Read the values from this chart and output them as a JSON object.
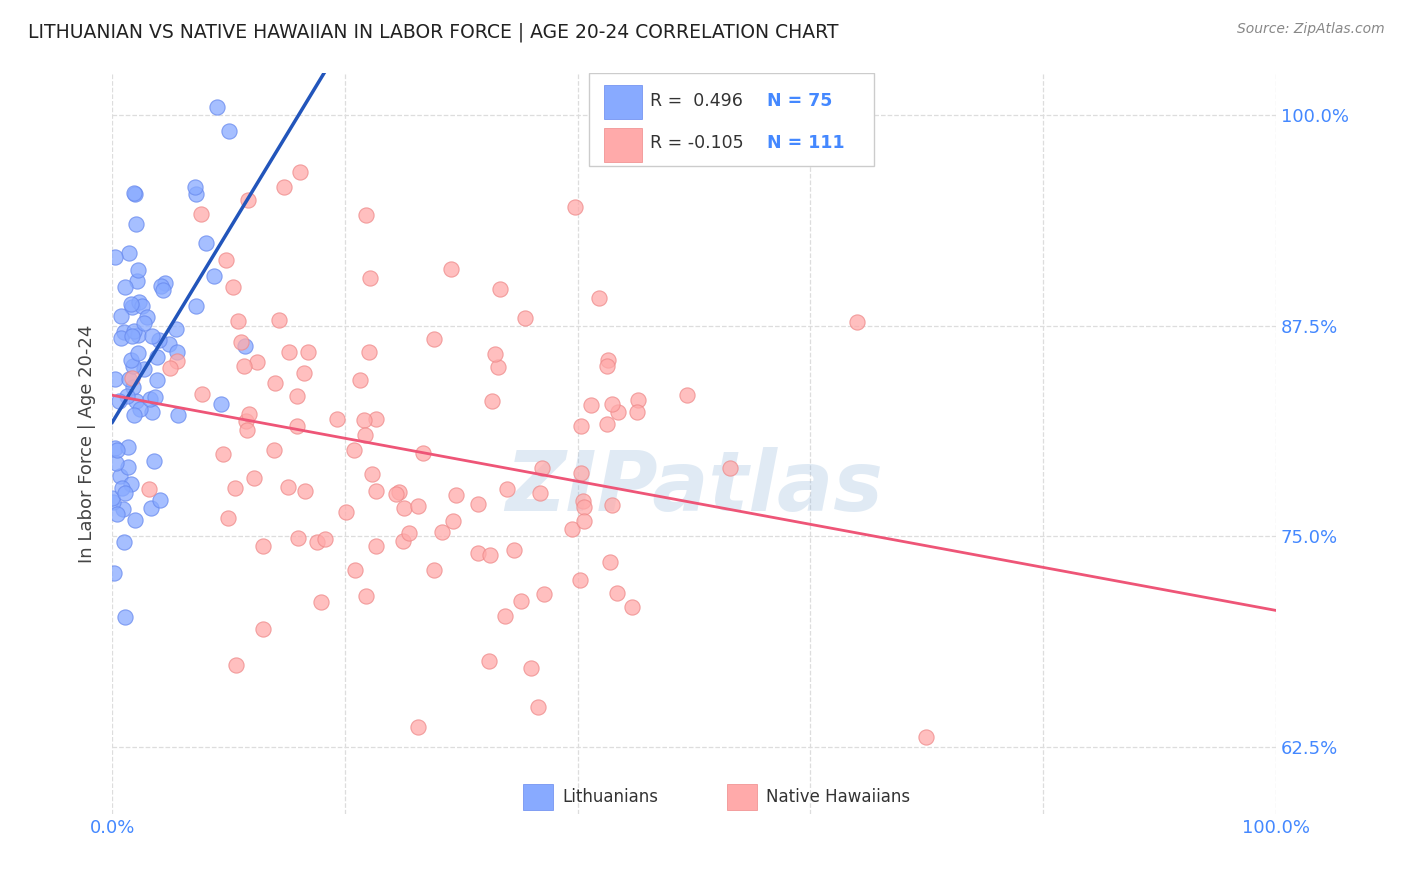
{
  "title": "LITHUANIAN VS NATIVE HAWAIIAN IN LABOR FORCE | AGE 20-24 CORRELATION CHART",
  "source": "Source: ZipAtlas.com",
  "ylabel": "In Labor Force | Age 20-24",
  "xlim": [
    0.0,
    1.0
  ],
  "ylim": [
    0.585,
    1.025
  ],
  "x_ticks": [
    0.0,
    0.2,
    0.4,
    0.6,
    0.8,
    1.0
  ],
  "x_tick_labels": [
    "0.0%",
    "",
    "",
    "",
    "",
    "100.0%"
  ],
  "y_tick_labels_right": [
    "62.5%",
    "75.0%",
    "87.5%",
    "100.0%"
  ],
  "y_ticks_right": [
    0.625,
    0.75,
    0.875,
    1.0
  ],
  "legend_r_blue": "R =  0.496",
  "legend_n_blue": "N = 75",
  "legend_r_pink": "R = -0.105",
  "legend_n_pink": "N = 111",
  "blue_color": "#88aaff",
  "blue_edge_color": "#6688ee",
  "pink_color": "#ffaaaa",
  "pink_edge_color": "#ee8888",
  "blue_line_color": "#2255bb",
  "pink_line_color": "#ee5577",
  "watermark": "ZIPatlas",
  "watermark_color": "#99bbdd",
  "background_color": "#ffffff",
  "grid_color": "#dddddd",
  "title_color": "#222222",
  "axis_label_color": "#444444",
  "tick_color": "#4488ff",
  "n_blue": 75,
  "n_pink": 111
}
